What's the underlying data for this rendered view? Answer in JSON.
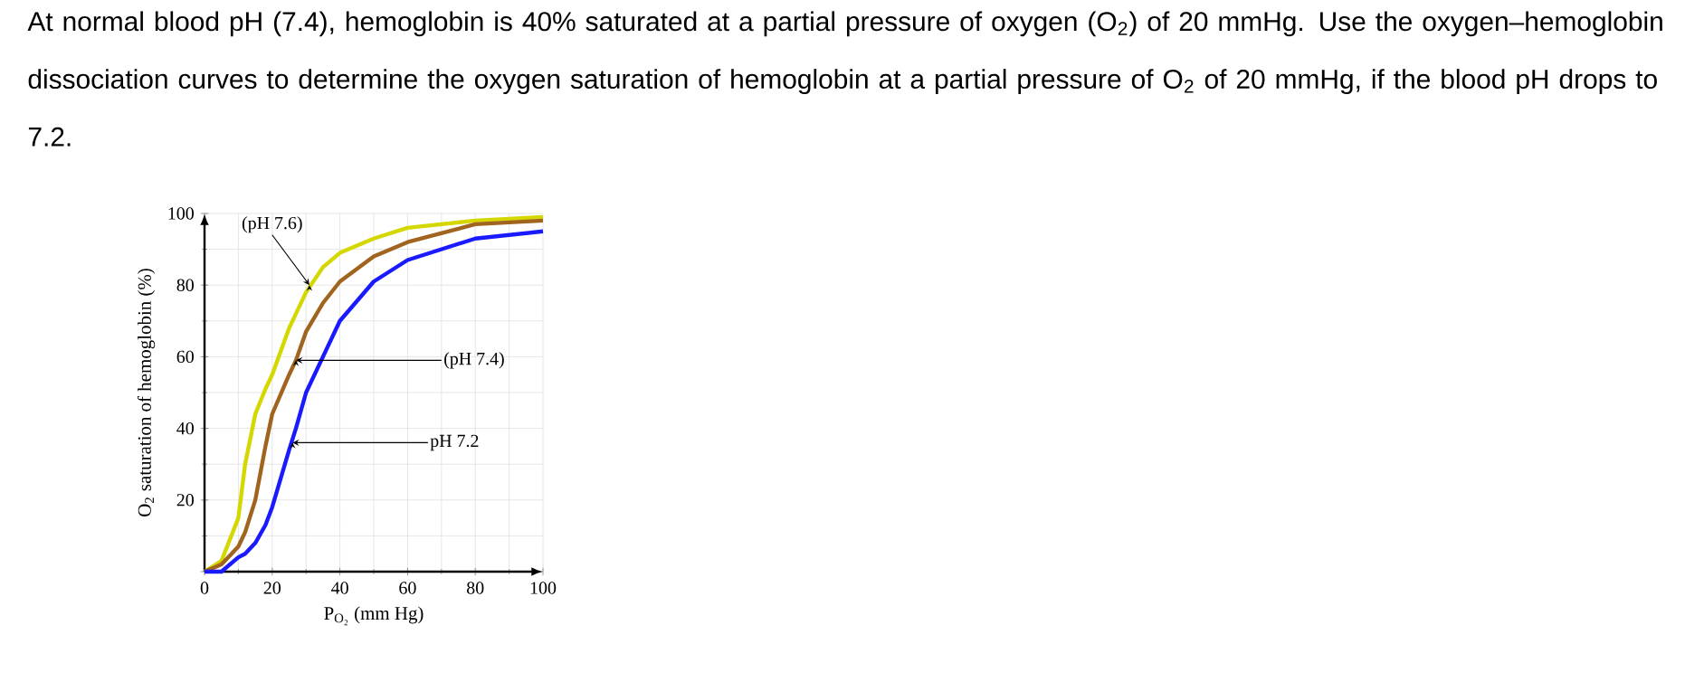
{
  "chart_data": {
    "type": "line",
    "title": "At normal blood pH (7.4), hemoglobin is 40% saturated at a partial pressure of oxygen (O$_{2}$) of 20 mmHg. Use the oxygen–hemoglobin dissociation curves to determine the oxygen saturation of hemoglobin at a partial pressure of O$_{2}$ of 20 mmHg, if the blood pH drops to 7.2.",
    "xlabel": "P$_{O₂}$ (mm Hg)",
    "ylabel": "O$_{2}$ saturation of hemoglobin (%)",
    "x": [
      0,
      5,
      10,
      12,
      15,
      18,
      20,
      25,
      27,
      30,
      35,
      40,
      50,
      60,
      80,
      100
    ],
    "series": [
      {
        "color": "#d4d800",
        "values": [
          0,
          3,
          15,
          30,
          44,
          51,
          55,
          68,
          72,
          78,
          85,
          89,
          93,
          96,
          98,
          99
        ]
      },
      {
        "color": "#a0641e",
        "values": [
          0,
          2,
          7,
          11,
          20,
          35,
          44,
          55,
          59,
          67,
          75,
          81,
          88,
          92,
          97,
          98
        ]
      },
      {
        "color": "#1a1aff",
        "values": [
          0,
          0,
          4,
          5,
          8,
          13,
          18,
          34,
          40,
          50,
          60,
          70,
          81,
          87,
          93,
          95
        ]
      }
    ],
    "annotations": [
      {
        "text": "(pH 7.6)",
        "x": 31,
        "y": 80
      },
      {
        "text": "(pH 7.4)",
        "x": 27,
        "y": 59
      },
      {
        "text": "pH 7.2",
        "x": 26,
        "y": 36
      }
    ],
    "xlim": [
      0,
      100
    ],
    "ylim": [
      0,
      100
    ],
    "xticks": [
      0,
      20,
      40,
      60,
      80,
      100
    ],
    "yticks": [
      {
        "value": 0,
        "label": null
      },
      20,
      40,
      60,
      80,
      100
    ],
    "grid": true,
    "marker": "none",
    "line_style": "solid"
  }
}
